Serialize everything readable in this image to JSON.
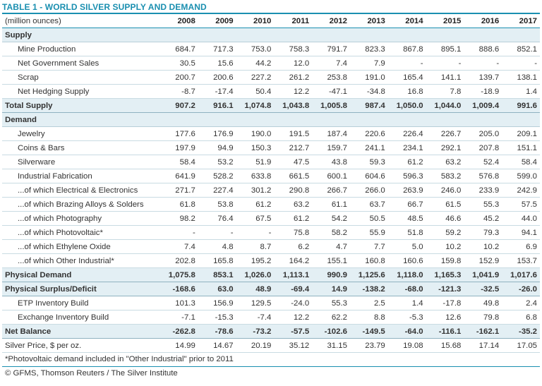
{
  "title": "TABLE 1 - WORLD SILVER SUPPLY AND DEMAND",
  "unit_label": "(million ounces)",
  "years": [
    "2008",
    "2009",
    "2010",
    "2011",
    "2012",
    "2013",
    "2014",
    "2015",
    "2016",
    "2017"
  ],
  "rows": [
    {
      "kind": "section",
      "label": "Supply",
      "values": []
    },
    {
      "kind": "item",
      "label": "Mine Production",
      "values": [
        "684.7",
        "717.3",
        "753.0",
        "758.3",
        "791.7",
        "823.3",
        "867.8",
        "895.1",
        "888.6",
        "852.1"
      ]
    },
    {
      "kind": "item",
      "label": "Net Government Sales",
      "values": [
        "30.5",
        "15.6",
        "44.2",
        "12.0",
        "7.4",
        "7.9",
        "-",
        "-",
        "-",
        "-"
      ]
    },
    {
      "kind": "item",
      "label": "Scrap",
      "values": [
        "200.7",
        "200.6",
        "227.2",
        "261.2",
        "253.8",
        "191.0",
        "165.4",
        "141.1",
        "139.7",
        "138.1"
      ]
    },
    {
      "kind": "item",
      "label": "Net Hedging Supply",
      "values": [
        "-8.7",
        "-17.4",
        "50.4",
        "12.2",
        "-47.1",
        "-34.8",
        "16.8",
        "7.8",
        "-18.9",
        "1.4"
      ]
    },
    {
      "kind": "total",
      "label": "Total Supply",
      "values": [
        "907.2",
        "916.1",
        "1,074.8",
        "1,043.8",
        "1,005.8",
        "987.4",
        "1,050.0",
        "1,044.0",
        "1,009.4",
        "991.6"
      ]
    },
    {
      "kind": "section",
      "label": "Demand",
      "values": []
    },
    {
      "kind": "item",
      "label": "Jewelry",
      "values": [
        "177.6",
        "176.9",
        "190.0",
        "191.5",
        "187.4",
        "220.6",
        "226.4",
        "226.7",
        "205.0",
        "209.1"
      ]
    },
    {
      "kind": "item",
      "label": "Coins & Bars",
      "values": [
        "197.9",
        "94.9",
        "150.3",
        "212.7",
        "159.7",
        "241.1",
        "234.1",
        "292.1",
        "207.8",
        "151.1"
      ]
    },
    {
      "kind": "item",
      "label": "Silverware",
      "values": [
        "58.4",
        "53.2",
        "51.9",
        "47.5",
        "43.8",
        "59.3",
        "61.2",
        "63.2",
        "52.4",
        "58.4"
      ]
    },
    {
      "kind": "item",
      "label": "Industrial Fabrication",
      "values": [
        "641.9",
        "528.2",
        "633.8",
        "661.5",
        "600.1",
        "604.6",
        "596.3",
        "583.2",
        "576.8",
        "599.0"
      ]
    },
    {
      "kind": "item",
      "label": "...of which Electrical & Electronics",
      "values": [
        "271.7",
        "227.4",
        "301.2",
        "290.8",
        "266.7",
        "266.0",
        "263.9",
        "246.0",
        "233.9",
        "242.9"
      ]
    },
    {
      "kind": "item",
      "label": "...of which Brazing Alloys & Solders",
      "values": [
        "61.8",
        "53.8",
        "61.2",
        "63.2",
        "61.1",
        "63.7",
        "66.7",
        "61.5",
        "55.3",
        "57.5"
      ]
    },
    {
      "kind": "item",
      "label": "...of which Photography",
      "values": [
        "98.2",
        "76.4",
        "67.5",
        "61.2",
        "54.2",
        "50.5",
        "48.5",
        "46.6",
        "45.2",
        "44.0"
      ]
    },
    {
      "kind": "item",
      "label": "...of which Photovoltaic*",
      "values": [
        "-",
        "-",
        "-",
        "75.8",
        "58.2",
        "55.9",
        "51.8",
        "59.2",
        "79.3",
        "94.1"
      ]
    },
    {
      "kind": "item",
      "label": "...of which Ethylene Oxide",
      "values": [
        "7.4",
        "4.8",
        "8.7",
        "6.2",
        "4.7",
        "7.7",
        "5.0",
        "10.2",
        "10.2",
        "6.9"
      ]
    },
    {
      "kind": "item",
      "label": "...of which Other Industrial*",
      "values": [
        "202.8",
        "165.8",
        "195.2",
        "164.2",
        "155.1",
        "160.8",
        "160.6",
        "159.8",
        "152.9",
        "153.7"
      ]
    },
    {
      "kind": "total",
      "label": "Physical Demand",
      "values": [
        "1,075.8",
        "853.1",
        "1,026.0",
        "1,113.1",
        "990.9",
        "1,125.6",
        "1,118.0",
        "1,165.3",
        "1,041.9",
        "1,017.6"
      ]
    },
    {
      "kind": "total",
      "label": "Physical Surplus/Deficit",
      "values": [
        "-168.6",
        "63.0",
        "48.9",
        "-69.4",
        "14.9",
        "-138.2",
        "-68.0",
        "-121.3",
        "-32.5",
        "-26.0"
      ]
    },
    {
      "kind": "item",
      "label": "ETP Inventory Build",
      "values": [
        "101.3",
        "156.9",
        "129.5",
        "-24.0",
        "55.3",
        "2.5",
        "1.4",
        "-17.8",
        "49.8",
        "2.4"
      ]
    },
    {
      "kind": "item",
      "label": "Exchange Inventory Build",
      "values": [
        "-7.1",
        "-15.3",
        "-7.4",
        "12.2",
        "62.2",
        "8.8",
        "-5.3",
        "12.6",
        "79.8",
        "6.8"
      ]
    },
    {
      "kind": "total",
      "label": "Net Balance",
      "values": [
        "-262.8",
        "-78.6",
        "-73.2",
        "-57.5",
        "-102.6",
        "-149.5",
        "-64.0",
        "-116.1",
        "-162.1",
        "-35.2"
      ]
    },
    {
      "kind": "plain",
      "label": "Silver Price, $ per oz.",
      "values": [
        "14.99",
        "14.67",
        "20.19",
        "35.12",
        "31.15",
        "23.79",
        "19.08",
        "15.68",
        "17.14",
        "17.05"
      ]
    }
  ],
  "footnote": "*Photovoltaic demand included in \"Other Industrial\" prior to 2011",
  "source": "© GFMS, Thomson Reuters / The Silver Institute",
  "colors": {
    "accent": "#1a8fb0",
    "section_bg": "#e3eff4"
  }
}
